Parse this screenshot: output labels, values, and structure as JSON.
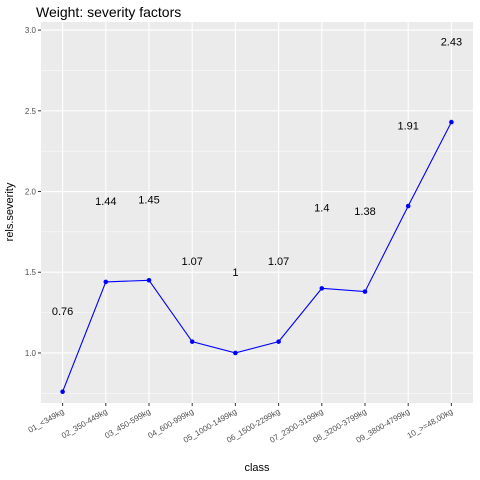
{
  "chart_data": {
    "type": "line",
    "title": "Weight: severity factors",
    "xlabel": "class",
    "ylabel": "rels.severity",
    "categories": [
      "01_<349kg",
      "02_350-449kg",
      "03_450-599kg",
      "04_600-999kg",
      "05_1000-1499kg",
      "06_1500-2299kg",
      "07_2300-3199kg",
      "08_3200-3799kg",
      "09_3800-4799kg",
      "10_>=48,00kg"
    ],
    "values": [
      0.76,
      1.44,
      1.45,
      1.07,
      1.0,
      1.07,
      1.4,
      1.38,
      1.91,
      2.43
    ],
    "data_labels": [
      "0.76",
      "1.44",
      "1.45",
      "1.07",
      "1",
      "1.07",
      "1.4",
      "1.38",
      "1.91",
      "2.43"
    ],
    "label_offset": 0.5,
    "ylim": [
      0.69,
      3.05
    ],
    "yticks": [
      1.0,
      1.5,
      2.0,
      2.5,
      3.0
    ],
    "ytick_labels": [
      "1.0",
      "1.5",
      "2.0",
      "2.5",
      "3.0"
    ],
    "grid": true,
    "line_color": "#0000ff",
    "panel_color": "#ebebeb",
    "grid_color": "#ffffff"
  }
}
